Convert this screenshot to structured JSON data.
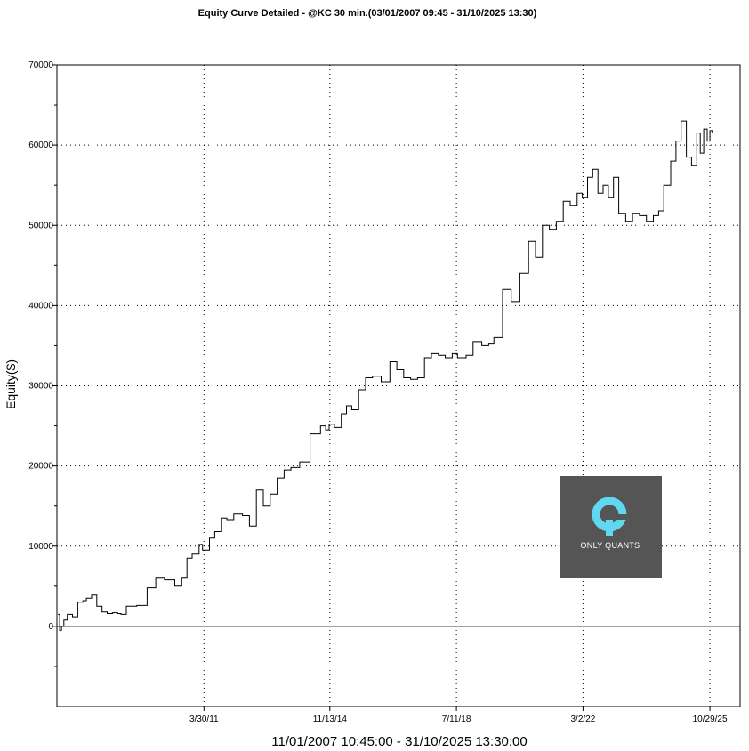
{
  "chart_data": {
    "type": "line",
    "title": "Equity Curve Detailed - @KC 30 min.(03/01/2007 09:45 - 31/10/2025 13:30)",
    "ylabel": "Equity($)",
    "xlabel": "11/01/2007 10:45:00 - 31/10/2025 13:30:00",
    "ylim": [
      -10000,
      70000
    ],
    "xlim": [
      2007.0,
      2026.7
    ],
    "y_ticks": [
      0,
      10000,
      20000,
      30000,
      40000,
      50000,
      60000,
      70000
    ],
    "x_ticks": [
      {
        "label": "3/30/11",
        "value": 2011.24
      },
      {
        "label": "11/13/14",
        "value": 2014.87
      },
      {
        "label": "7/11/18",
        "value": 2018.52
      },
      {
        "label": "3/2/22",
        "value": 2022.17
      },
      {
        "label": "10/29/25",
        "value": 2025.83
      }
    ],
    "grid": true,
    "zero_line": true,
    "series": [
      {
        "color": "#000000",
        "x": [
          2007.03,
          2007.08,
          2007.13,
          2007.2,
          2007.3,
          2007.45,
          2007.6,
          2007.75,
          2007.85,
          2008.0,
          2008.15,
          2008.3,
          2008.45,
          2008.6,
          2008.75,
          2008.85,
          2009.0,
          2009.3,
          2009.6,
          2009.85,
          2010.1,
          2010.4,
          2010.6,
          2010.75,
          2010.9,
          2011.1,
          2011.2,
          2011.4,
          2011.55,
          2011.75,
          2011.9,
          2012.1,
          2012.35,
          2012.55,
          2012.75,
          2012.95,
          2013.15,
          2013.35,
          2013.55,
          2013.75,
          2014.0,
          2014.3,
          2014.6,
          2014.75,
          2014.85,
          2015.0,
          2015.2,
          2015.35,
          2015.5,
          2015.7,
          2015.9,
          2016.1,
          2016.35,
          2016.6,
          2016.8,
          2017.0,
          2017.2,
          2017.4,
          2017.6,
          2017.8,
          2018.0,
          2018.2,
          2018.4,
          2018.55,
          2018.8,
          2019.0,
          2019.25,
          2019.45,
          2019.6,
          2019.85,
          2020.1,
          2020.35,
          2020.6,
          2020.8,
          2021.0,
          2021.2,
          2021.4,
          2021.6,
          2021.8,
          2022.0,
          2022.15,
          2022.3,
          2022.45,
          2022.6,
          2022.75,
          2022.9,
          2023.05,
          2023.2,
          2023.4,
          2023.6,
          2023.8,
          2024.0,
          2024.2,
          2024.35,
          2024.5,
          2024.7,
          2024.85,
          2025.0,
          2025.15,
          2025.3,
          2025.45,
          2025.55,
          2025.65,
          2025.75,
          2025.83,
          2025.9
        ],
        "y": [
          1500,
          -500,
          0,
          800,
          1500,
          1200,
          3000,
          3200,
          3500,
          3900,
          2500,
          1800,
          1600,
          1700,
          1600,
          1500,
          2500,
          2600,
          4800,
          6000,
          5800,
          5000,
          6000,
          8500,
          9000,
          10200,
          9500,
          11000,
          11800,
          13500,
          13300,
          14000,
          13800,
          12500,
          17000,
          15000,
          16500,
          18500,
          19500,
          19800,
          20500,
          24000,
          25000,
          24500,
          25200,
          24800,
          26500,
          27500,
          27000,
          29500,
          31000,
          31200,
          30500,
          33000,
          32000,
          31000,
          30800,
          31000,
          33500,
          34000,
          33800,
          33500,
          34000,
          33500,
          33800,
          35500,
          35000,
          35200,
          36000,
          42000,
          40500,
          44000,
          48000,
          46000,
          50000,
          49500,
          50500,
          53000,
          52500,
          54000,
          53500,
          56000,
          57000,
          54000,
          55000,
          53500,
          56000,
          51500,
          50500,
          51500,
          51200,
          50500,
          51200,
          51800,
          55000,
          58000,
          60500,
          63000,
          58500,
          57500,
          61500,
          59000,
          62000,
          60500,
          61800,
          61500
        ]
      }
    ]
  },
  "logo": {
    "text": "ONLY QUANTS",
    "bg": "#555555",
    "accent": "#5fd8f0"
  }
}
